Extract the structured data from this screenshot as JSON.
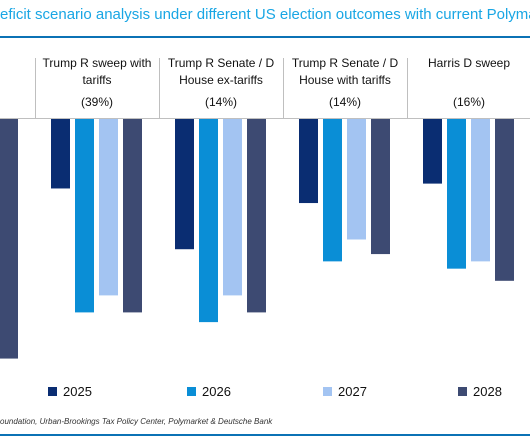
{
  "title_text": "eficit scenario analysis under different US election outcomes with current Polymarket",
  "source_text": "oundation, Urban-Brookings Tax Policy Center, Polymarket & Deutsche Bank",
  "colors": {
    "2025": "#0a2d72",
    "2026": "#0a8ed6",
    "2027": "#a3c4f2",
    "2028": "#3d4a72",
    "title": "#19a6e4",
    "rule": "#0b72b5"
  },
  "chart_data": {
    "type": "bar",
    "title": "eficit scenario analysis under different US election outcomes with current Polymarket",
    "xlabel": "",
    "ylabel": "",
    "grid": false,
    "legend_position": "bottom",
    "value_axis": "unlabeled; bars hang downward from a shared baseline, values are relative bar depths (0-100)",
    "ylim": [
      0,
      100
    ],
    "categories": [
      {
        "lines": [
          "o ex-",
          "",
          ""
        ],
        "prob": ""
      },
      {
        "lines": [
          "Trump R sweep with",
          "tariffs",
          ""
        ],
        "prob": "(39%)"
      },
      {
        "lines": [
          "Trump R Senate / D",
          "House ex-tariffs",
          ""
        ],
        "prob": "(14%)"
      },
      {
        "lines": [
          "Trump R Senate / D",
          "House with tariffs",
          ""
        ],
        "prob": "(14%)"
      },
      {
        "lines": [
          "Harris D sweep",
          "",
          ""
        ],
        "prob": "(16%)"
      }
    ],
    "series": [
      {
        "name": "2025",
        "values": [
          null,
          29,
          54,
          35,
          27
        ]
      },
      {
        "name": "2026",
        "values": [
          null,
          80,
          84,
          59,
          62
        ]
      },
      {
        "name": "2027",
        "values": [
          null,
          73,
          73,
          50,
          59
        ]
      },
      {
        "name": "2028",
        "values": [
          99,
          80,
          80,
          56,
          67
        ]
      }
    ]
  }
}
